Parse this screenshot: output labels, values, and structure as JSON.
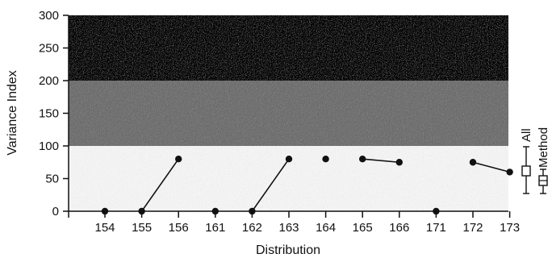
{
  "chart_data": {
    "type": "line",
    "title": "",
    "xlabel": "Distribution",
    "ylabel": "Variance Index",
    "ylim": [
      0,
      300
    ],
    "yticks": [
      0,
      50,
      100,
      150,
      200,
      250,
      300
    ],
    "categories": [
      "154",
      "155",
      "156",
      "161",
      "162",
      "163",
      "164",
      "165",
      "166",
      "171",
      "172",
      "173"
    ],
    "bands": [
      {
        "from": 200,
        "to": 300,
        "color": "#050505"
      },
      {
        "from": 100,
        "to": 200,
        "color": "#6e6e6e"
      },
      {
        "from": 0,
        "to": 100,
        "color": "#f4f4f4"
      }
    ],
    "points": [
      {
        "x": "154",
        "y": 0
      },
      {
        "x": "155",
        "y": 0
      },
      {
        "x": "156",
        "y": 80
      },
      {
        "x": "161",
        "y": 0
      },
      {
        "x": "162",
        "y": 0
      },
      {
        "x": "163",
        "y": 80
      },
      {
        "x": "164",
        "y": 80
      },
      {
        "x": "165",
        "y": 80
      },
      {
        "x": "166",
        "y": 75
      },
      {
        "x": "171",
        "y": 0
      },
      {
        "x": "172",
        "y": 75
      },
      {
        "x": "173",
        "y": 60
      }
    ],
    "segments": [
      [
        "155",
        "156"
      ],
      [
        "162",
        "163"
      ],
      [
        "165",
        "166"
      ],
      [
        "172",
        "173"
      ]
    ],
    "legend": {
      "placement": "right",
      "entries": [
        {
          "label": "All",
          "marker": "square-errorbar"
        },
        {
          "label": "Method",
          "marker": "square-errorbar-tick"
        }
      ]
    },
    "grid": false
  }
}
